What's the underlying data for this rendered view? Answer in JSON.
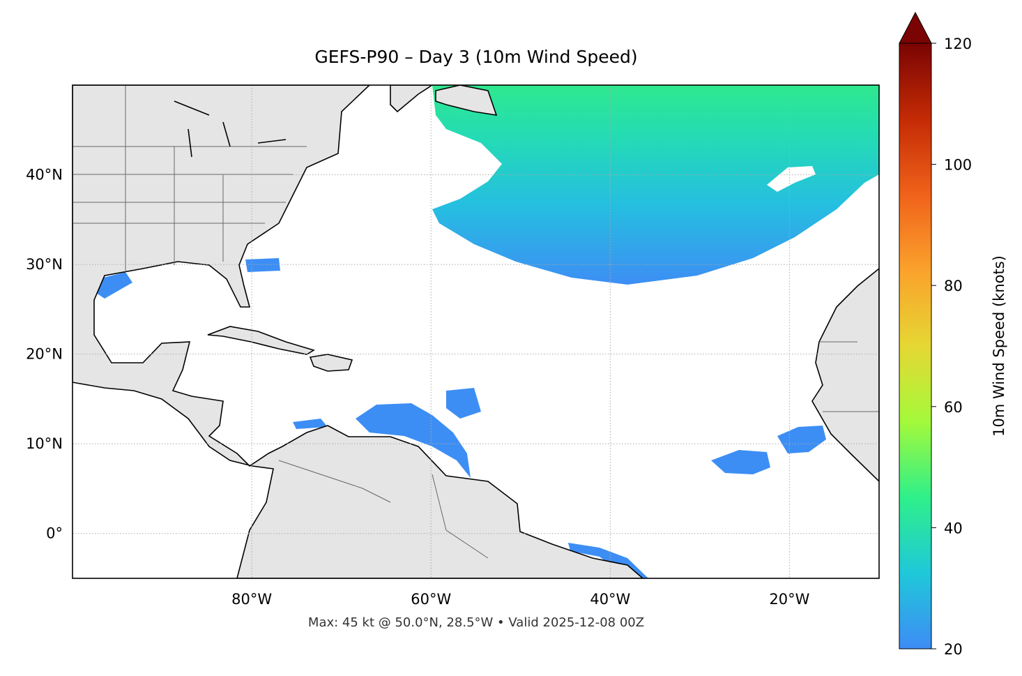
{
  "chart_data": {
    "type": "map",
    "title": "GEFS-P90 – Day 3 (10m Wind Speed)",
    "subtitle": "Max: 45 kt @ 50.0°N, 28.5°W • Valid 2025-12-08 00Z",
    "xlim": [
      -100,
      -10
    ],
    "ylim": [
      -5,
      50
    ],
    "xticks": [
      {
        "value": -80,
        "label": "80°W"
      },
      {
        "value": -60,
        "label": "60°W"
      },
      {
        "value": -40,
        "label": "40°W"
      },
      {
        "value": -20,
        "label": "20°W"
      }
    ],
    "yticks": [
      {
        "value": 0,
        "label": "0°"
      },
      {
        "value": 10,
        "label": "10°N"
      },
      {
        "value": 20,
        "label": "20°N"
      },
      {
        "value": 30,
        "label": "30°N"
      },
      {
        "value": 40,
        "label": "40°N"
      }
    ],
    "grid": true,
    "colorbar": {
      "label": "10m Wind Speed (knots)",
      "lim": [
        20,
        120
      ],
      "ticks": [
        20,
        40,
        60,
        80,
        100,
        120
      ],
      "colors": [
        "#3e8cf5",
        "#1fc8d9",
        "#2ef08a",
        "#a4f93a",
        "#e5d733",
        "#fba22c",
        "#f0621a",
        "#c42b05",
        "#7a0403"
      ]
    }
  }
}
